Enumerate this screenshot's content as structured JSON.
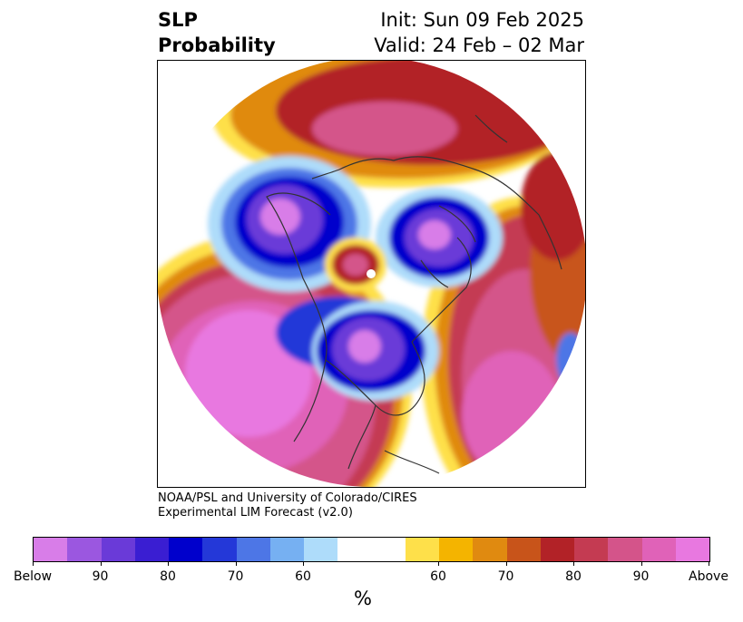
{
  "title": {
    "left_line1": "SLP",
    "left_line2": "Probability",
    "right_line1": "Init: Sun 09 Feb 2025",
    "right_line2": "Valid: 24 Feb – 02 Mar"
  },
  "credit": {
    "line1": "NOAA/PSL and University of Colorado/CIRES",
    "line2": "Experimental LIM Forecast (v2.0)"
  },
  "colorbar": {
    "colors": [
      "#d87de8",
      "#9b57e0",
      "#6a3ad8",
      "#3a1ed2",
      "#0000cc",
      "#2438d8",
      "#4d76e6",
      "#76b0f2",
      "#aedcfa",
      "#ffffff",
      "#fee04a",
      "#f4b400",
      "#e08a10",
      "#c8541a",
      "#b22227",
      "#c43b52",
      "#d4548a",
      "#e062b8",
      "#e878e0"
    ],
    "tick_labels": [
      "Below",
      "90",
      "80",
      "70",
      "60",
      "60",
      "70",
      "80",
      "90",
      "Above"
    ],
    "unit": "%"
  },
  "map": {
    "projection": "north polar stereographic",
    "below_colors": {
      "60": "#aedcfa",
      "70": "#4d76e6",
      "80": "#0000cc",
      "90": "#6a3ad8",
      "Below": "#d87de8"
    },
    "above_colors": {
      "60": "#fee04a",
      "70": "#e08a10",
      "80": "#b22227",
      "90": "#d4548a",
      "Above": "#e878e0"
    }
  }
}
